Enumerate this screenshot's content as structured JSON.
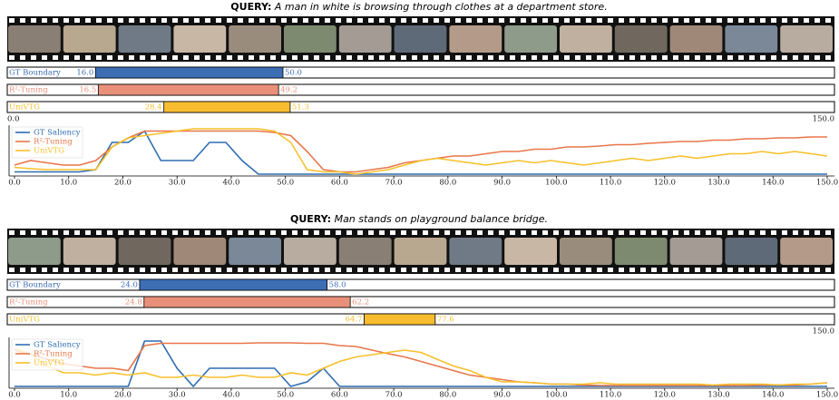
{
  "chart_data": [
    {
      "type": "range",
      "title": "QUERY:",
      "subtitle": "A man in white is browsing through clothes at a department store.",
      "xlim": [
        0,
        150
      ],
      "xticks": [
        {
          "value": 0,
          "label": "0.0"
        },
        {
          "value": 150,
          "label": "150.0"
        }
      ],
      "series": [
        {
          "name": "GT Boundary",
          "color": "#3d6eb4",
          "values": [
            16,
            50
          ],
          "value_labels": [
            "16.0",
            "50.0"
          ]
        },
        {
          "name": "R²-Tuning",
          "color": "#e8907a",
          "values": [
            16.5,
            49.2
          ],
          "value_labels": [
            "16.5",
            "49.2"
          ]
        },
        {
          "name": "UniVTG",
          "color": "#f7bd2f",
          "values": [
            28.4,
            51.3
          ],
          "value_labels": [
            "28.4",
            "51.3"
          ]
        }
      ]
    },
    {
      "type": "line",
      "xlim": [
        0,
        150
      ],
      "ylim": [
        0,
        1
      ],
      "legend": "upper left",
      "xticks": [
        {
          "value": 0,
          "label": "0.0"
        },
        {
          "value": 10,
          "label": "10.0"
        },
        {
          "value": 20,
          "label": "20.0"
        },
        {
          "value": 30,
          "label": "30.0"
        },
        {
          "value": 40,
          "label": "40.0"
        },
        {
          "value": 50,
          "label": "50.0"
        },
        {
          "value": 60,
          "label": "60.0"
        },
        {
          "value": 70,
          "label": "70.0"
        },
        {
          "value": 80,
          "label": "80.0"
        },
        {
          "value": 90,
          "label": "90.0"
        },
        {
          "value": 100,
          "label": "100.0"
        },
        {
          "value": 110,
          "label": "110.0"
        },
        {
          "value": 120,
          "label": "120.0"
        },
        {
          "value": 130,
          "label": "130.0"
        },
        {
          "value": 140,
          "label": "140.0"
        },
        {
          "value": 150,
          "label": "150.0"
        }
      ],
      "x": [
        0,
        3,
        6,
        9,
        12,
        15,
        18,
        21,
        24,
        27,
        30,
        33,
        36,
        39,
        42,
        45,
        48,
        51,
        54,
        57,
        60,
        63,
        66,
        69,
        72,
        75,
        78,
        81,
        84,
        87,
        90,
        93,
        96,
        99,
        102,
        105,
        108,
        111,
        114,
        117,
        120,
        123,
        126,
        129,
        132,
        135,
        138,
        141,
        144,
        147,
        150
      ],
      "series": [
        {
          "name": "GT Saliency",
          "color": "#2f6db3",
          "values": [
            0.05,
            0.05,
            0.05,
            0.05,
            0.05,
            0.1,
            0.7,
            0.7,
            0.95,
            0.3,
            0.3,
            0.3,
            0.7,
            0.7,
            0.3,
            0,
            0,
            0,
            0,
            0,
            0,
            0,
            0,
            0,
            0,
            0,
            0,
            0,
            0,
            0,
            0,
            0,
            0,
            0,
            0,
            0,
            0,
            0,
            0,
            0,
            0,
            0,
            0,
            0,
            0,
            0,
            0,
            0,
            0,
            0,
            0
          ]
        },
        {
          "name": "R²-Tuning",
          "color": "#e8764a",
          "values": [
            0.2,
            0.3,
            0.25,
            0.2,
            0.2,
            0.3,
            0.6,
            0.8,
            0.95,
            0.95,
            0.95,
            0.95,
            0.95,
            0.95,
            0.95,
            0.95,
            0.92,
            0.85,
            0.5,
            0.1,
            0.05,
            0.05,
            0.1,
            0.15,
            0.25,
            0.3,
            0.35,
            0.4,
            0.4,
            0.45,
            0.5,
            0.5,
            0.55,
            0.55,
            0.6,
            0.6,
            0.62,
            0.65,
            0.65,
            0.68,
            0.7,
            0.72,
            0.72,
            0.75,
            0.75,
            0.78,
            0.78,
            0.8,
            0.8,
            0.82,
            0.82
          ]
        },
        {
          "name": "UniVTG",
          "color": "#f7c02a",
          "values": [
            0.15,
            0.12,
            0.1,
            0.1,
            0.1,
            0.1,
            0.6,
            0.8,
            0.85,
            0.9,
            0.95,
            1,
            1,
            1,
            1,
            1,
            0.95,
            0.7,
            0.1,
            0.05,
            0.05,
            0,
            0.05,
            0.1,
            0.2,
            0.3,
            0.35,
            0.3,
            0.25,
            0.2,
            0.25,
            0.3,
            0.25,
            0.3,
            0.25,
            0.2,
            0.25,
            0.3,
            0.35,
            0.3,
            0.35,
            0.4,
            0.35,
            0.4,
            0.45,
            0.45,
            0.5,
            0.45,
            0.5,
            0.45,
            0.4
          ]
        }
      ]
    },
    {
      "type": "range",
      "title": "QUERY:",
      "subtitle": "Man stands on playground balance bridge.",
      "xlim": [
        0,
        150
      ],
      "xticks": [
        {
          "value": 150,
          "label": "150.0"
        }
      ],
      "series": [
        {
          "name": "GT Boundary",
          "color": "#3d6eb4",
          "values": [
            24,
            58
          ],
          "value_labels": [
            "24.0",
            "58.0"
          ]
        },
        {
          "name": "R²-Tuning",
          "color": "#e8907a",
          "values": [
            24.8,
            62.2
          ],
          "value_labels": [
            "24.8",
            "62.2"
          ]
        },
        {
          "name": "UniVTG",
          "color": "#f7bd2f",
          "values": [
            64.7,
            77.6
          ],
          "value_labels": [
            "64.7",
            "77.6"
          ]
        }
      ]
    },
    {
      "type": "line",
      "xlim": [
        0,
        150
      ],
      "ylim": [
        0,
        1
      ],
      "legend": "upper left",
      "xticks": [
        {
          "value": 0,
          "label": "0.0"
        },
        {
          "value": 10,
          "label": "10.0"
        },
        {
          "value": 20,
          "label": "20.0"
        },
        {
          "value": 30,
          "label": "30.0"
        },
        {
          "value": 40,
          "label": "40.0"
        },
        {
          "value": 50,
          "label": "50.0"
        },
        {
          "value": 60,
          "label": "60.0"
        },
        {
          "value": 70,
          "label": "70.0"
        },
        {
          "value": 80,
          "label": "80.0"
        },
        {
          "value": 90,
          "label": "90.0"
        },
        {
          "value": 100,
          "label": "100.0"
        },
        {
          "value": 110,
          "label": "110.0"
        },
        {
          "value": 120,
          "label": "120.0"
        },
        {
          "value": 130,
          "label": "130.0"
        },
        {
          "value": 140,
          "label": "140.0"
        },
        {
          "value": 150,
          "label": "150.0"
        }
      ],
      "x": [
        0,
        3,
        6,
        9,
        12,
        15,
        18,
        21,
        24,
        27,
        30,
        33,
        36,
        39,
        42,
        45,
        48,
        51,
        54,
        57,
        60,
        63,
        66,
        69,
        72,
        75,
        78,
        81,
        84,
        87,
        90,
        93,
        96,
        99,
        102,
        105,
        108,
        111,
        114,
        117,
        120,
        123,
        126,
        129,
        132,
        135,
        138,
        141,
        144,
        147,
        150
      ],
      "series": [
        {
          "name": "GT Saliency",
          "color": "#2f6db3",
          "values": [
            0,
            0,
            0,
            0,
            0,
            0,
            0,
            0,
            1,
            1,
            0.4,
            0,
            0.4,
            0.4,
            0.4,
            0.4,
            0.4,
            0,
            0.1,
            0.4,
            0,
            0,
            0,
            0,
            0,
            0,
            0,
            0,
            0,
            0,
            0,
            0,
            0,
            0,
            0,
            0,
            0,
            0,
            0,
            0,
            0,
            0,
            0,
            0,
            0,
            0,
            0,
            0,
            0,
            0,
            0
          ]
        },
        {
          "name": "R²-Tuning",
          "color": "#e8764a",
          "values": [
            0.8,
            0.7,
            0.6,
            0.5,
            0.45,
            0.4,
            0.4,
            0.35,
            0.9,
            0.95,
            0.95,
            0.95,
            0.95,
            0.95,
            0.95,
            0.96,
            0.96,
            0.96,
            0.95,
            0.95,
            0.9,
            0.88,
            0.8,
            0.72,
            0.65,
            0.55,
            0.45,
            0.35,
            0.25,
            0.2,
            0.15,
            0.1,
            0.08,
            0.05,
            0.05,
            0.03,
            0.02,
            0.02,
            0.02,
            0.02,
            0.02,
            0.02,
            0.02,
            0.02,
            0.02,
            0.02,
            0.03,
            0.03,
            0.03,
            0.05,
            0.08
          ]
        },
        {
          "name": "UniVTG",
          "color": "#f7c02a",
          "values": [
            0.85,
            0.7,
            0.45,
            0.3,
            0.3,
            0.25,
            0.3,
            0.25,
            0.3,
            0.2,
            0.2,
            0.25,
            0.2,
            0.2,
            0.25,
            0.2,
            0.2,
            0.3,
            0.25,
            0.4,
            0.55,
            0.65,
            0.7,
            0.75,
            0.8,
            0.75,
            0.6,
            0.45,
            0.35,
            0.2,
            0.1,
            0.1,
            0.08,
            0.05,
            0.05,
            0.05,
            0.08,
            0.05,
            0.05,
            0.05,
            0.05,
            0.05,
            0.05,
            0.03,
            0.05,
            0.05,
            0.05,
            0.03,
            0.05,
            0.05,
            0.08
          ]
        }
      ]
    }
  ]
}
